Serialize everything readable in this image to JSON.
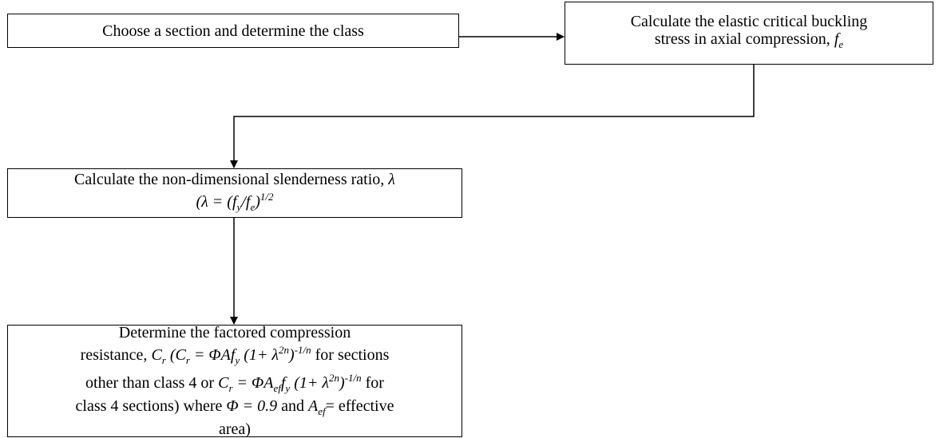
{
  "nodes": [
    {
      "lines": [
        [
          {
            "t": "Choose a section and determine the class"
          }
        ]
      ]
    },
    {
      "lines": [
        [
          {
            "t": "Calculate the elastic critical buckling"
          }
        ],
        [
          {
            "t": "stress in axial compression, "
          },
          {
            "t": "f",
            "s": "i"
          },
          {
            "t": "e",
            "s": "sub"
          }
        ]
      ]
    },
    {
      "lines": [
        [
          {
            "t": "Calculate the non-dimensional slenderness ratio, "
          },
          {
            "t": "λ",
            "s": "i"
          }
        ],
        [
          {
            "t": "(λ = (f",
            "s": "i"
          },
          {
            "t": "y",
            "s": "sub"
          },
          {
            "t": "/f",
            "s": "i"
          },
          {
            "t": "e",
            "s": "sub"
          },
          {
            "t": ")",
            "s": "i"
          },
          {
            "t": "1/2",
            "s": "sup"
          }
        ]
      ]
    },
    {
      "lines": [
        [
          {
            "t": "Determine the factored compression"
          }
        ],
        [
          {
            "t": "resistance, "
          },
          {
            "t": "C",
            "s": "i"
          },
          {
            "t": "r",
            "s": "sub"
          },
          {
            "t": " (C",
            "s": "i"
          },
          {
            "t": "r",
            "s": "sub"
          },
          {
            "t": " = ΦAf",
            "s": "i"
          },
          {
            "t": "y",
            "s": "sub"
          },
          {
            "t": " (1+ λ",
            "s": "i"
          },
          {
            "t": "2n",
            "s": "sup"
          },
          {
            "t": ")",
            "s": "i"
          },
          {
            "t": "-1/n",
            "s": "sup"
          },
          {
            "t": " for sections"
          }
        ],
        [
          {
            "t": "other than class 4 or "
          },
          {
            "t": "C",
            "s": "i"
          },
          {
            "t": "r",
            "s": "sub"
          },
          {
            "t": " = ΦA",
            "s": "i"
          },
          {
            "t": "ef",
            "s": "sub"
          },
          {
            "t": "f",
            "s": "i"
          },
          {
            "t": "y",
            "s": "sub"
          },
          {
            "t": " (1+ λ",
            "s": "i"
          },
          {
            "t": "2n",
            "s": "sup"
          },
          {
            "t": ")",
            "s": "i"
          },
          {
            "t": "-1/n",
            "s": "sup"
          },
          {
            "t": " for"
          }
        ],
        [
          {
            "t": "class 4 sections) where "
          },
          {
            "t": "Φ = 0.9",
            "s": "i"
          },
          {
            "t": " and "
          },
          {
            "t": "A",
            "s": "i"
          },
          {
            "t": "ef",
            "s": "sub"
          },
          {
            "t": "= effective"
          }
        ],
        [
          {
            "t": "area)"
          }
        ]
      ]
    }
  ]
}
